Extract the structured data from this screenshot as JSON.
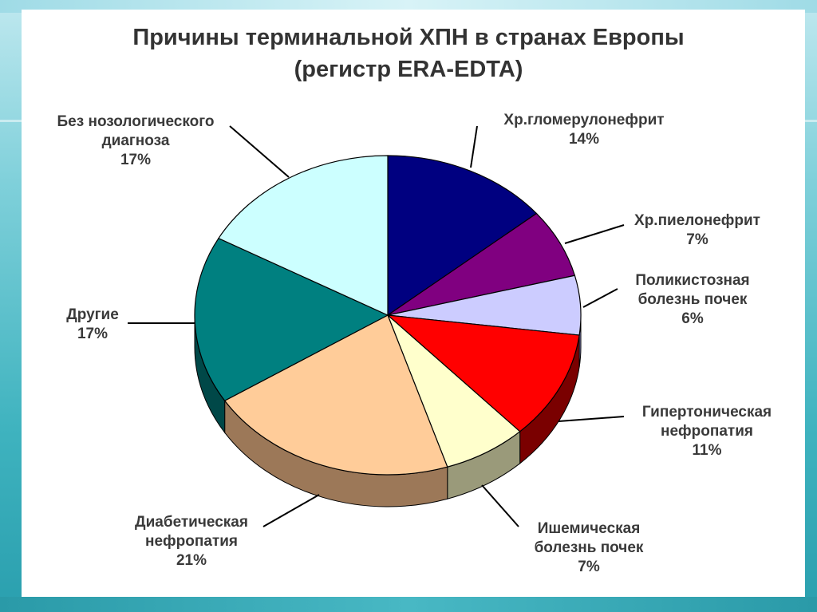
{
  "chart_data": {
    "type": "pie",
    "title": "Причины терминальной ХПН в странах Европы",
    "subtitle": "(регистр ERA-EDTA)",
    "slices": [
      {
        "label": [
          "Хр.гломерулонефрит"
        ],
        "value": 14,
        "value_label": "14%",
        "color": "#000080",
        "side": "#000050"
      },
      {
        "label": [
          "Хр.пиелонефрит"
        ],
        "value": 7,
        "value_label": "7%",
        "color": "#800080",
        "side": "#4a004a"
      },
      {
        "label": [
          "Поликистозная",
          "болезнь почек"
        ],
        "value": 6,
        "value_label": "6%",
        "color": "#ccccff",
        "side": "#8c8cbf"
      },
      {
        "label": [
          "Гипертоническая",
          "нефропатия"
        ],
        "value": 11,
        "value_label": "11%",
        "color": "#ff0000",
        "side": "#7a0000"
      },
      {
        "label": [
          "Ишемическая",
          "болезнь почек"
        ],
        "value": 7,
        "value_label": "7%",
        "color": "#ffffcc",
        "side": "#9a9a7a"
      },
      {
        "label": [
          "Диабетическая",
          "нефропатия"
        ],
        "value": 21,
        "value_label": "21%",
        "color": "#ffcc99",
        "side": "#9c7858"
      },
      {
        "label": [
          "Другие"
        ],
        "value": 17,
        "value_label": "17%",
        "color": "#008080",
        "side": "#004848"
      },
      {
        "label": [
          "Без нозологического",
          "диагноза"
        ],
        "value": 17,
        "value_label": "17%",
        "color": "#ccffff",
        "side": "#88b4b4"
      }
    ],
    "legend": "none"
  }
}
